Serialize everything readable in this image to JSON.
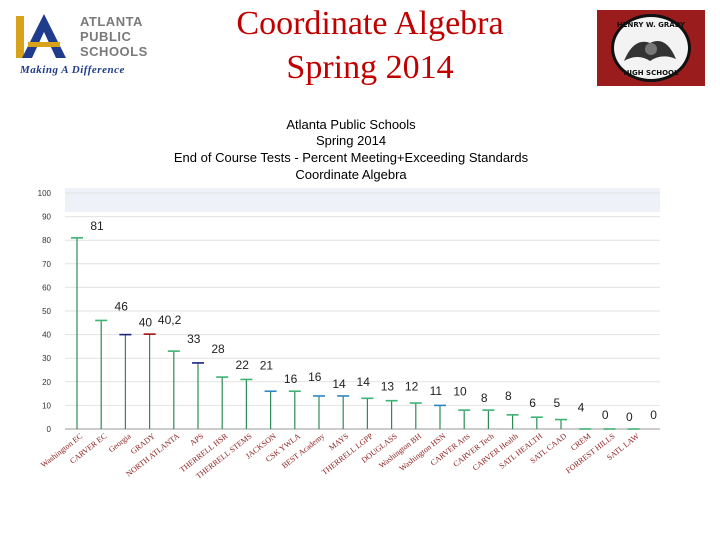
{
  "header": {
    "title_line1": "Coordinate Algebra",
    "title_line2": "Spring 2014",
    "logo_letter": "A",
    "logo_text": [
      "ATLANTA",
      "PUBLIC",
      "SCHOOLS"
    ],
    "logo_tagline": "Making A Difference",
    "seal_top": "HENRY W. GRADY",
    "seal_bottom": "HIGH SCHOOL"
  },
  "chart_data": {
    "type": "bar",
    "title": [
      "Atlanta Public Schools",
      "Spring 2014",
      "End of Course Tests - Percent Meeting+Exceeding Standards",
      "Coordinate Algebra"
    ],
    "ylim": [
      0,
      100
    ],
    "yticks": [
      0,
      10,
      20,
      30,
      40,
      50,
      60,
      70,
      80,
      90,
      100
    ],
    "grid": true,
    "categories": [
      "Washington EC",
      "CARVER EC",
      "Georgia",
      "GRADY",
      "NORTH ATLANTA",
      "APS",
      "THERRELL HSR",
      "THERRELL STEMS",
      "JACKSON",
      "CSK YWLA",
      "BEST Academy",
      "MAYS",
      "THERRELL LGPP",
      "DOUGLASS",
      "Washington BH",
      "Washington HSN",
      "CARVER Arts",
      "CARVER Tech",
      "CARVER Health",
      "SATL HEALTH",
      "SATL CAAD",
      "CREM",
      "FORREST HILLS",
      "SATL LAW"
    ],
    "values": [
      81,
      46,
      40,
      40.2,
      33,
      28,
      22,
      21,
      16,
      16,
      14,
      14,
      13,
      12,
      11,
      10,
      8,
      8,
      6,
      5,
      4,
      0,
      0,
      0
    ],
    "data_labels": [
      "81",
      "46",
      "40",
      "40,2",
      "33",
      "28",
      "22",
      "21",
      "16",
      "16",
      "14",
      "14",
      "13",
      "12",
      "11",
      "10",
      "8",
      "8",
      "6",
      "5",
      "4",
      "0",
      "0",
      "0"
    ],
    "colors": {
      "stem": "#2e8b57",
      "cap_green": "#3cb371",
      "cap_navy": "#1a237e",
      "cap_red": "#a01010",
      "cap_blue": "#2e86c1",
      "category_text": "#8b1a1a"
    },
    "cap_color_keys": [
      "cap_green",
      "cap_green",
      "cap_navy",
      "cap_red",
      "cap_green",
      "cap_navy",
      "cap_green",
      "cap_green",
      "cap_blue",
      "cap_green",
      "cap_blue",
      "cap_blue",
      "cap_green",
      "cap_green",
      "cap_green",
      "cap_blue",
      "cap_green",
      "cap_green",
      "cap_green",
      "cap_green",
      "cap_green",
      "cap_green",
      "cap_green",
      "cap_green"
    ]
  }
}
